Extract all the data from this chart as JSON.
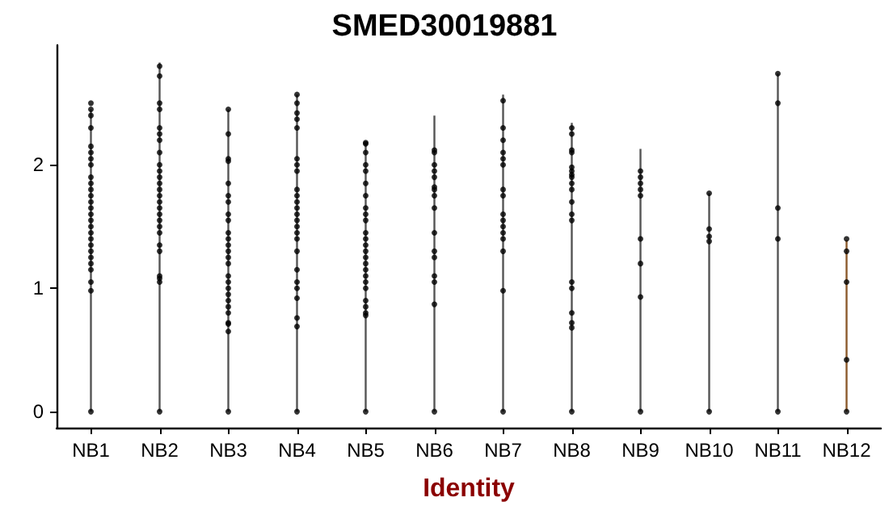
{
  "chart_data": {
    "type": "scatter",
    "title": "SMED30019881",
    "xlabel": "Identity",
    "grid": false,
    "categories": [
      "NB1",
      "NB2",
      "NB3",
      "NB4",
      "NB5",
      "NB6",
      "NB7",
      "NB8",
      "NB9",
      "NB10",
      "NB11",
      "NB12"
    ],
    "ylim": [
      -0.13,
      2.97
    ],
    "yticks": [
      0,
      1,
      2
    ],
    "series": [
      {
        "type": "bar",
        "colors": [
          "#555555",
          "#555555",
          "#555555",
          "#555555",
          "#555555",
          "#555555",
          "#555555",
          "#555555",
          "#555555",
          "#555555",
          "#555555",
          "#8b5a2b"
        ],
        "values": [
          2.45,
          2.83,
          2.45,
          2.57,
          2.18,
          2.4,
          2.57,
          2.34,
          2.13,
          1.77,
          2.74,
          1.39
        ]
      },
      {
        "color": "#000000",
        "marker": "circle",
        "x": [
          "NB1",
          "NB2",
          "NB3",
          "NB4",
          "NB5",
          "NB6",
          "NB7",
          "NB8",
          "NB9",
          "NB10",
          "NB11",
          "NB12",
          "NB1",
          "NB1",
          "NB1",
          "NB1",
          "NB1",
          "NB1",
          "NB1",
          "NB1",
          "NB1",
          "NB1",
          "NB1",
          "NB1",
          "NB1",
          "NB1",
          "NB1",
          "NB1",
          "NB1",
          "NB1",
          "NB1",
          "NB1",
          "NB1",
          "NB1",
          "NB1",
          "NB1",
          "NB1",
          "NB1",
          "NB2",
          "NB2",
          "NB2",
          "NB2",
          "NB2",
          "NB2",
          "NB2",
          "NB2",
          "NB2",
          "NB2",
          "NB2",
          "NB2",
          "NB2",
          "NB2",
          "NB2",
          "NB2",
          "NB2",
          "NB2",
          "NB2",
          "NB2",
          "NB2",
          "NB2",
          "NB2",
          "NB2",
          "NB2",
          "NB3",
          "NB3",
          "NB3",
          "NB3",
          "NB3",
          "NB3",
          "NB3",
          "NB3",
          "NB3",
          "NB3",
          "NB3",
          "NB3",
          "NB3",
          "NB3",
          "NB3",
          "NB3",
          "NB3",
          "NB3",
          "NB3",
          "NB3",
          "NB3",
          "NB3",
          "NB3",
          "NB3",
          "NB3",
          "NB4",
          "NB4",
          "NB4",
          "NB4",
          "NB4",
          "NB4",
          "NB4",
          "NB4",
          "NB4",
          "NB4",
          "NB4",
          "NB4",
          "NB4",
          "NB4",
          "NB4",
          "NB4",
          "NB4",
          "NB4",
          "NB4",
          "NB4",
          "NB4",
          "NB4",
          "NB4",
          "NB4",
          "NB5",
          "NB5",
          "NB5",
          "NB5",
          "NB5",
          "NB5",
          "NB5",
          "NB5",
          "NB5",
          "NB5",
          "NB5",
          "NB5",
          "NB5",
          "NB5",
          "NB5",
          "NB5",
          "NB5",
          "NB5",
          "NB5",
          "NB5",
          "NB5",
          "NB5",
          "NB5",
          "NB5",
          "NB6",
          "NB6",
          "NB6",
          "NB6",
          "NB6",
          "NB6",
          "NB6",
          "NB6",
          "NB6",
          "NB6",
          "NB6",
          "NB6",
          "NB6",
          "NB6",
          "NB6",
          "NB7",
          "NB7",
          "NB7",
          "NB7",
          "NB7",
          "NB7",
          "NB7",
          "NB7",
          "NB7",
          "NB7",
          "NB7",
          "NB7",
          "NB7",
          "NB7",
          "NB7",
          "NB8",
          "NB8",
          "NB8",
          "NB8",
          "NB8",
          "NB8",
          "NB8",
          "NB8",
          "NB8",
          "NB8",
          "NB8",
          "NB8",
          "NB8",
          "NB8",
          "NB8",
          "NB8",
          "NB8",
          "NB8",
          "NB9",
          "NB9",
          "NB9",
          "NB9",
          "NB9",
          "NB9",
          "NB9",
          "NB9",
          "NB10",
          "NB10",
          "NB10",
          "NB10",
          "NB11",
          "NB11",
          "NB11",
          "NB11",
          "NB12",
          "NB12",
          "NB12",
          "NB12"
        ],
        "values": [
          0,
          0,
          0,
          0,
          0,
          0,
          0,
          0,
          0,
          0,
          0,
          0,
          2.5,
          2.45,
          2.4,
          2.3,
          2.15,
          2.1,
          2.05,
          2,
          1.9,
          1.85,
          1.8,
          1.75,
          1.7,
          1.65,
          1.6,
          1.55,
          1.5,
          1.45,
          1.4,
          1.35,
          1.3,
          1.25,
          1.2,
          1.15,
          1.05,
          0.98,
          2.8,
          2.72,
          2.5,
          2.45,
          2.3,
          2.25,
          2.2,
          2.1,
          2,
          1.95,
          1.9,
          1.85,
          1.8,
          1.75,
          1.7,
          1.65,
          1.6,
          1.55,
          1.5,
          1.45,
          1.35,
          1.3,
          1.1,
          1.08,
          1.05,
          2.45,
          2.25,
          2.05,
          2.03,
          1.85,
          1.75,
          1.7,
          1.6,
          1.55,
          1.45,
          1.4,
          1.35,
          1.3,
          1.25,
          1.2,
          1.1,
          1.05,
          1,
          0.95,
          0.9,
          0.85,
          0.8,
          0.72,
          0.71,
          0.65,
          2.57,
          2.5,
          2.42,
          2.37,
          2.3,
          2.05,
          2,
          1.95,
          1.8,
          1.75,
          1.7,
          1.65,
          1.6,
          1.55,
          1.5,
          1.45,
          1.4,
          1.3,
          1.15,
          1.05,
          1,
          0.92,
          0.76,
          0.69,
          2.18,
          2.17,
          2.1,
          2,
          1.95,
          1.85,
          1.75,
          1.65,
          1.6,
          1.55,
          1.45,
          1.4,
          1.35,
          1.3,
          1.25,
          1.2,
          1.15,
          1.1,
          1.05,
          1,
          0.9,
          0.85,
          0.8,
          0.78,
          2.12,
          2.1,
          2,
          1.95,
          1.9,
          1.82,
          1.8,
          1.75,
          1.65,
          1.45,
          1.3,
          1.25,
          1.1,
          1.05,
          0.87,
          2.52,
          2.3,
          2.2,
          2.1,
          2.05,
          2,
          1.8,
          1.75,
          1.6,
          1.55,
          1.5,
          1.45,
          1.4,
          1.3,
          0.98,
          2.3,
          2.25,
          2.12,
          2.1,
          1.98,
          1.95,
          1.92,
          1.9,
          1.85,
          1.8,
          1.7,
          1.6,
          1.55,
          1.05,
          1,
          0.8,
          0.72,
          0.68,
          1.95,
          1.9,
          1.85,
          1.8,
          1.75,
          1.4,
          1.2,
          0.93,
          1.77,
          1.48,
          1.42,
          1.38,
          2.74,
          2.5,
          1.65,
          1.4,
          1.4,
          1.3,
          1.05,
          0.42
        ]
      }
    ]
  }
}
